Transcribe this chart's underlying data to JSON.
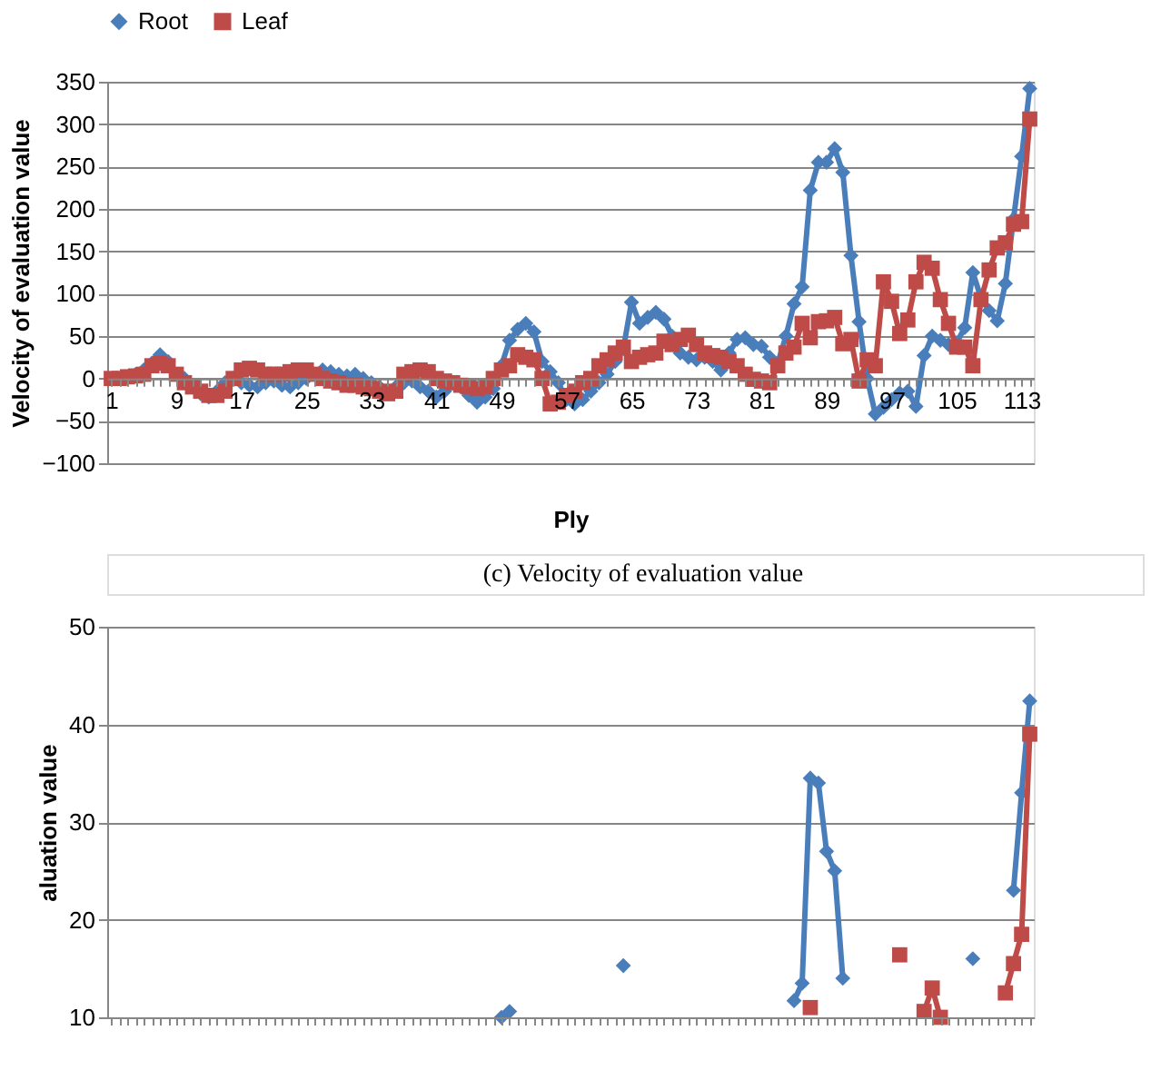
{
  "chart_data": [
    {
      "type": "line",
      "xlabel": "Ply",
      "ylabel": "Velocity of evaluation value",
      "annotations": [
        "(c) Velocity of evaluation value"
      ],
      "categories": [
        "1",
        null,
        null,
        null,
        null,
        null,
        null,
        null,
        "9",
        null,
        null,
        null,
        null,
        null,
        null,
        null,
        "17",
        null,
        null,
        null,
        null,
        null,
        null,
        null,
        "25",
        null,
        null,
        null,
        null,
        null,
        null,
        null,
        "33",
        null,
        null,
        null,
        null,
        null,
        null,
        null,
        "41",
        null,
        null,
        null,
        null,
        null,
        null,
        null,
        "49",
        null,
        null,
        null,
        null,
        null,
        null,
        null,
        "57",
        null,
        null,
        null,
        null,
        null,
        null,
        null,
        "65",
        null,
        null,
        null,
        null,
        null,
        null,
        null,
        "73",
        null,
        null,
        null,
        null,
        null,
        null,
        null,
        "81",
        null,
        null,
        null,
        null,
        null,
        null,
        null,
        "89",
        null,
        null,
        null,
        null,
        null,
        null,
        null,
        "97",
        null,
        null,
        null,
        null,
        null,
        null,
        null,
        "105",
        null,
        null,
        null,
        null,
        null,
        null,
        null,
        "113",
        null
      ],
      "series": [
        {
          "name": "Root",
          "color": "#4a7ebb",
          "marker": "diamond",
          "values": [
            null,
            null,
            2,
            5,
            10,
            18,
            28,
            20,
            5,
            0,
            -10,
            -18,
            -22,
            -15,
            -5,
            0,
            -5,
            -8,
            -10,
            -5,
            -3,
            -8,
            -10,
            -5,
            0,
            5,
            10,
            8,
            5,
            3,
            5,
            0,
            -5,
            -10,
            -15,
            -10,
            -5,
            -3,
            -10,
            -15,
            -22,
            -15,
            -5,
            -10,
            -20,
            -28,
            -22,
            -12,
            15,
            45,
            58,
            65,
            55,
            20,
            8,
            -5,
            -25,
            -30,
            -25,
            -15,
            -5,
            5,
            20,
            35,
            90,
            65,
            72,
            78,
            70,
            50,
            30,
            25,
            22,
            25,
            20,
            10,
            30,
            46,
            48,
            40,
            38,
            25,
            18,
            50,
            88,
            108,
            222,
            255,
            255,
            271,
            243,
            145,
            67,
            0,
            -42,
            -34,
            -25,
            -17,
            -15,
            -33,
            27,
            50,
            45,
            40,
            42,
            60,
            125,
            95,
            80,
            68,
            112,
            188,
            262,
            342
          ]
        },
        {
          "name": "Leaf",
          "color": "#be4b48",
          "marker": "square",
          "values": [
            0,
            0,
            2,
            3,
            5,
            15,
            18,
            15,
            5,
            -5,
            -10,
            -15,
            -20,
            -20,
            -15,
            0,
            10,
            12,
            10,
            5,
            5,
            5,
            8,
            10,
            10,
            5,
            0,
            -3,
            -5,
            -8,
            -8,
            -10,
            -12,
            -15,
            -18,
            -15,
            5,
            8,
            10,
            8,
            0,
            -3,
            -5,
            -8,
            -10,
            -12,
            -10,
            0,
            10,
            15,
            28,
            25,
            22,
            0,
            -30,
            -28,
            -20,
            -15,
            -5,
            0,
            15,
            22,
            30,
            37,
            20,
            25,
            28,
            30,
            44,
            40,
            46,
            51,
            40,
            30,
            27,
            25,
            20,
            15,
            5,
            -1,
            -3,
            -5,
            15,
            30,
            37,
            65,
            48,
            67,
            68,
            72,
            41,
            46,
            -3,
            22,
            15,
            114,
            91,
            53,
            69,
            114,
            137,
            130,
            93,
            65,
            37,
            37,
            15,
            93,
            128,
            154,
            160,
            182,
            185,
            306
          ]
        }
      ],
      "ylim": [
        -100,
        350
      ],
      "yticks": [
        -100,
        -50,
        0,
        50,
        100,
        150,
        200,
        250,
        300,
        350
      ],
      "grid": "y",
      "legend": "top"
    },
    {
      "type": "line",
      "ylabel": "aluation value",
      "tick_labels": "y",
      "categories": [
        "1",
        null,
        null,
        null,
        null,
        null,
        null,
        null,
        "9",
        null,
        null,
        null,
        null,
        null,
        null,
        null,
        "17",
        null,
        null,
        null,
        null,
        null,
        null,
        null,
        "25",
        null,
        null,
        null,
        null,
        null,
        null,
        null,
        "33",
        null,
        null,
        null,
        null,
        null,
        null,
        null,
        "41",
        null,
        null,
        null,
        null,
        null,
        null,
        null,
        "49",
        null,
        null,
        null,
        null,
        null,
        null,
        null,
        "57",
        null,
        null,
        null,
        null,
        null,
        null,
        null,
        "65",
        null,
        null,
        null,
        null,
        null,
        null,
        null,
        "73",
        null,
        null,
        null,
        null,
        null,
        null,
        null,
        "81",
        null,
        null,
        null,
        null,
        null,
        null,
        null,
        "89",
        null,
        null,
        null,
        null,
        null,
        null,
        null,
        "97",
        null,
        null,
        null,
        null,
        null,
        null,
        null,
        "105",
        null,
        null,
        null,
        null,
        null,
        null,
        null,
        "113",
        null
      ],
      "series": [
        {
          "name": "Root",
          "color": "#4a7ebb",
          "marker": "diamond",
          "values": [
            null,
            null,
            null,
            null,
            null,
            null,
            null,
            null,
            null,
            null,
            null,
            null,
            null,
            null,
            null,
            null,
            null,
            null,
            null,
            null,
            null,
            null,
            null,
            null,
            null,
            null,
            null,
            null,
            null,
            null,
            null,
            null,
            null,
            null,
            null,
            null,
            null,
            null,
            null,
            null,
            null,
            null,
            null,
            null,
            null,
            null,
            null,
            null,
            null,
            null,
            null,
            null,
            null,
            null,
            null,
            null,
            null,
            null,
            null,
            null,
            null,
            null,
            null,
            null,
            null,
            null,
            null,
            null,
            null,
            null,
            null,
            null,
            null,
            null,
            null,
            null,
            null,
            null,
            null,
            null,
            null,
            null,
            null,
            null,
            11.7,
            13.5,
            34.5,
            34,
            27,
            25,
            14,
            null,
            null,
            null,
            null,
            null,
            null,
            null,
            null,
            null,
            null,
            null,
            null,
            null,
            null,
            null,
            null,
            null,
            null,
            null,
            null,
            23,
            33,
            42.4
          ]
        },
        {
          "name": "Leaf",
          "color": "#be4b48",
          "marker": "square",
          "values": [
            null,
            null,
            null,
            null,
            null,
            null,
            null,
            null,
            null,
            null,
            null,
            null,
            null,
            null,
            null,
            null,
            null,
            null,
            null,
            null,
            null,
            null,
            null,
            null,
            null,
            null,
            null,
            null,
            null,
            null,
            null,
            null,
            null,
            null,
            null,
            null,
            null,
            null,
            null,
            null,
            null,
            null,
            null,
            null,
            null,
            null,
            null,
            null,
            null,
            null,
            null,
            null,
            null,
            null,
            null,
            null,
            null,
            null,
            null,
            null,
            null,
            null,
            null,
            null,
            null,
            null,
            null,
            null,
            null,
            null,
            null,
            null,
            null,
            null,
            null,
            null,
            null,
            null,
            null,
            null,
            null,
            null,
            null,
            null,
            null,
            null,
            null,
            null,
            null,
            null,
            null,
            null,
            null,
            null,
            null,
            null,
            null,
            null,
            null,
            null,
            10.6,
            13,
            10,
            null,
            null,
            null,
            null,
            null,
            null,
            null,
            12.5,
            15.5,
            18.5,
            39
          ]
        },
        {
          "type": "scatter",
          "color": "#4a7ebb",
          "marker": "diamond",
          "values": [
            null,
            null,
            null,
            null,
            null,
            null,
            null,
            null,
            null,
            null,
            null,
            null,
            null,
            null,
            null,
            null,
            null,
            null,
            null,
            null,
            null,
            null,
            null,
            null,
            null,
            null,
            null,
            null,
            null,
            null,
            null,
            null,
            null,
            null,
            null,
            null,
            null,
            null,
            null,
            null,
            null,
            null,
            null,
            null,
            null,
            null,
            null,
            null,
            10,
            10.6,
            null,
            null,
            null,
            null,
            null,
            null,
            null,
            null,
            null,
            null,
            null,
            null,
            null,
            15.3,
            null,
            null,
            null,
            null,
            null,
            null,
            null,
            null,
            null,
            null,
            null,
            null,
            null,
            null,
            null,
            null,
            null,
            null,
            null,
            null,
            null,
            null,
            null,
            null,
            null,
            null,
            null,
            null,
            null,
            null,
            null,
            null,
            null,
            null,
            null,
            null,
            null,
            null,
            null,
            null,
            null,
            null,
            16,
            null,
            null,
            null,
            null,
            null,
            null,
            null
          ]
        },
        {
          "type": "scatter",
          "color": "#be4b48",
          "marker": "square",
          "values": [
            null,
            null,
            null,
            null,
            null,
            null,
            null,
            null,
            null,
            null,
            null,
            null,
            null,
            null,
            null,
            null,
            null,
            null,
            null,
            null,
            null,
            null,
            null,
            null,
            null,
            null,
            null,
            null,
            null,
            null,
            null,
            null,
            null,
            null,
            null,
            null,
            null,
            null,
            null,
            null,
            null,
            null,
            null,
            null,
            null,
            null,
            null,
            null,
            null,
            null,
            null,
            null,
            null,
            null,
            null,
            null,
            null,
            null,
            null,
            null,
            null,
            null,
            null,
            null,
            null,
            null,
            null,
            null,
            null,
            null,
            null,
            null,
            null,
            null,
            null,
            null,
            null,
            null,
            null,
            null,
            null,
            null,
            null,
            null,
            null,
            null,
            11,
            null,
            null,
            null,
            null,
            null,
            null,
            null,
            null,
            null,
            null,
            16.4,
            null,
            null,
            null,
            null,
            null,
            null,
            null,
            null,
            null,
            null,
            null,
            null,
            null,
            null,
            null,
            null
          ]
        }
      ],
      "ylim": [
        10,
        50
      ],
      "yticks": [
        10,
        20,
        30,
        40,
        50
      ],
      "grid": "y",
      "legend": "top"
    }
  ]
}
